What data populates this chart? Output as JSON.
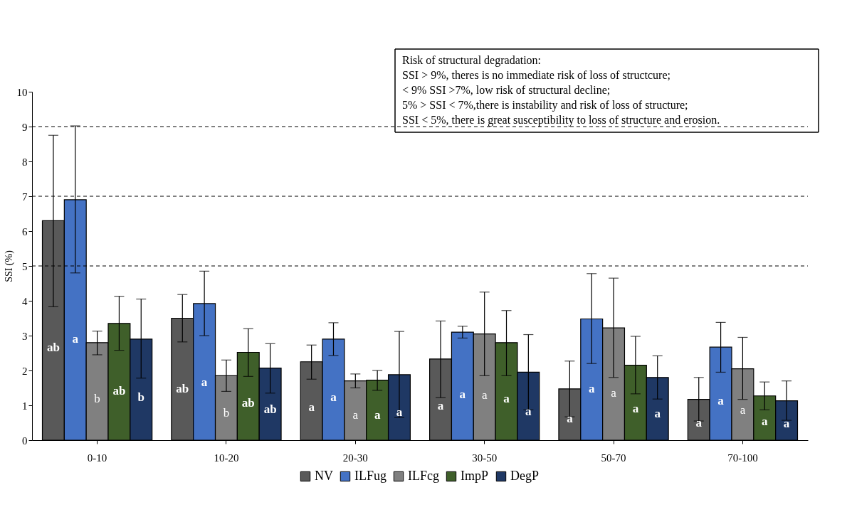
{
  "chart_data": {
    "type": "bar",
    "ylabel": "SSI (%)",
    "categories": [
      "0-10",
      "10-20",
      "20-30",
      "30-50",
      "50-70",
      "70-100"
    ],
    "series": [
      {
        "name": "NV",
        "color": "#595959",
        "values": [
          6.3,
          3.5,
          2.25,
          2.33,
          1.47,
          1.17
        ],
        "errors": [
          [
            3.83,
            8.75
          ],
          [
            2.82,
            4.18
          ],
          [
            1.75,
            2.73
          ],
          [
            1.22,
            3.42
          ],
          [
            0.67,
            2.27
          ],
          [
            0.55,
            1.8
          ]
        ],
        "value_labels": [
          "ab",
          "ab",
          "a",
          "a",
          "a",
          "a"
        ]
      },
      {
        "name": "ILFug",
        "color": "#4472c4",
        "values": [
          6.9,
          3.92,
          2.9,
          3.1,
          3.48,
          2.67
        ],
        "errors": [
          [
            4.8,
            9.02
          ],
          [
            3.0,
            4.85
          ],
          [
            2.43,
            3.37
          ],
          [
            2.93,
            3.27
          ],
          [
            2.2,
            4.78
          ],
          [
            1.95,
            3.38
          ]
        ],
        "value_labels": [
          "a",
          "a",
          "a",
          "a",
          "a",
          "a"
        ]
      },
      {
        "name": "ILFcg",
        "color": "#808080",
        "values": [
          2.8,
          1.85,
          1.7,
          3.05,
          3.22,
          2.05
        ],
        "errors": [
          [
            2.45,
            3.13
          ],
          [
            1.4,
            2.3
          ],
          [
            1.5,
            1.9
          ],
          [
            1.85,
            4.25
          ],
          [
            1.8,
            4.65
          ],
          [
            1.17,
            2.95
          ]
        ],
        "value_labels": [
          "b",
          "b",
          "a",
          "a",
          "a",
          "a"
        ]
      },
      {
        "name": "ImpP",
        "color": "#3f5f2a",
        "values": [
          3.35,
          2.52,
          1.72,
          2.8,
          2.15,
          1.27
        ],
        "errors": [
          [
            2.58,
            4.13
          ],
          [
            1.83,
            3.2
          ],
          [
            1.43,
            2.0
          ],
          [
            1.85,
            3.72
          ],
          [
            1.33,
            2.98
          ],
          [
            0.87,
            1.67
          ]
        ],
        "value_labels": [
          "ab",
          "ab",
          "a",
          "a",
          "a",
          "a"
        ]
      },
      {
        "name": "DegP",
        "color": "#1f3864",
        "values": [
          2.9,
          2.07,
          1.88,
          1.95,
          1.8,
          1.13
        ],
        "errors": [
          [
            1.78,
            4.05
          ],
          [
            1.35,
            2.77
          ],
          [
            0.65,
            3.12
          ],
          [
            0.87,
            3.03
          ],
          [
            1.18,
            2.42
          ],
          [
            0.57,
            1.7
          ]
        ],
        "value_labels": [
          "b",
          "ab",
          "a",
          "a",
          "a",
          "a"
        ]
      }
    ],
    "ylim": [
      0,
      10
    ],
    "yticks": [
      0,
      1,
      2,
      3,
      4,
      5,
      6,
      7,
      8,
      9,
      10
    ],
    "ref_lines": [
      {
        "axis": "y",
        "value": 5,
        "line_style": "dashed"
      },
      {
        "axis": "y",
        "value": 7,
        "line_style": "dashed"
      },
      {
        "axis": "y",
        "value": 9,
        "line_style": "dashed"
      }
    ],
    "annotations": [
      "Risk of structural degradation:",
      "SSI > 9%, theres is no immediate risk of loss of structcure;",
      "< 9% SSI >7%, low risk of structural decline;",
      "5% > SSI < 7%,there is instability and risk of loss of structure;",
      "SSI < 5%, there is great susceptibility to loss of structure and erosion."
    ],
    "grid": false,
    "legend": "bottom"
  }
}
